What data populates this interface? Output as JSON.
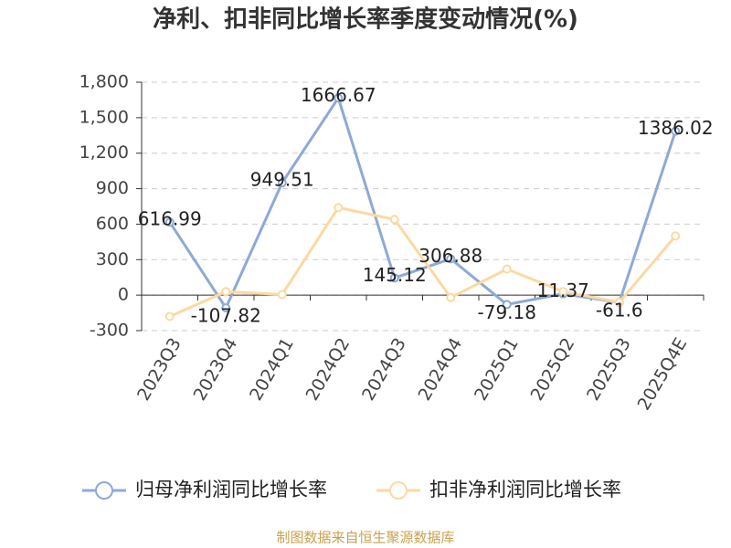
{
  "chart_data": {
    "type": "line",
    "title": "净利、扣非同比增长率季度变动情况(%)",
    "categories": [
      "2023Q3",
      "2023Q4",
      "2024Q1",
      "2024Q2",
      "2024Q3",
      "2024Q4",
      "2025Q1",
      "2025Q2",
      "2025Q3",
      "2025Q4E"
    ],
    "series": [
      {
        "name": "归母净利润同比增长率",
        "color": "#8ea9d6",
        "values": [
          616.99,
          -107.82,
          949.51,
          1666.67,
          145.12,
          306.88,
          -79.18,
          11.37,
          -61.6,
          1386.02
        ]
      },
      {
        "name": "扣非净利润同比增长率",
        "color": "#fcd9a1",
        "values": [
          -180,
          30,
          5,
          740,
          640,
          -20,
          220,
          30,
          -60,
          500
        ]
      }
    ],
    "ylim": [
      -300,
      1800
    ],
    "yticks": [
      -300,
      0,
      300,
      600,
      900,
      {
        "value": 1200,
        "label": "1,200"
      },
      {
        "value": 1500,
        "label": "1,500"
      },
      {
        "value": 1800,
        "label": "1,800"
      }
    ],
    "grid": true,
    "source": "制图数据来自恒生聚源数据库"
  }
}
